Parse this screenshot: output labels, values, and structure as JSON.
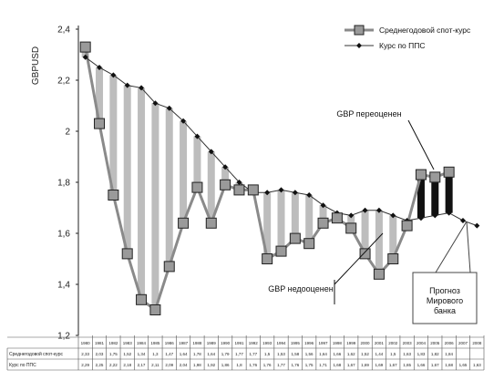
{
  "chart_data": {
    "type": "line",
    "ylabel": "GBPUSD",
    "ylim": [
      1.2,
      2.4
    ],
    "yticks": [
      "1,2",
      "1,4",
      "1,6",
      "1,8",
      "2",
      "2,2",
      "2,4"
    ],
    "yticks_values": [
      1.2,
      1.4,
      1.6,
      1.8,
      2.0,
      2.2,
      2.4
    ],
    "x": [
      "1980",
      "1981",
      "1982",
      "1983",
      "1984",
      "1985",
      "1986",
      "1987",
      "1988",
      "1989",
      "1990",
      "1991",
      "1992",
      "1993",
      "1994",
      "1995",
      "1996",
      "1997",
      "1998",
      "1999",
      "2000",
      "2001",
      "2002",
      "2003",
      "2004",
      "2005",
      "2006",
      "2007",
      "2008"
    ],
    "series": [
      {
        "name": "Среднегодовой спот-курс",
        "marker": "square",
        "color": "#808080",
        "values": [
          2.33,
          2.03,
          1.75,
          1.52,
          1.34,
          1.3,
          1.47,
          1.64,
          1.78,
          1.64,
          1.79,
          1.77,
          1.77,
          1.5,
          1.53,
          1.58,
          1.56,
          1.64,
          1.66,
          1.62,
          1.52,
          1.44,
          1.5,
          1.63,
          1.83,
          1.82,
          1.84,
          null,
          null
        ],
        "value_labels": [
          "2,33",
          "2,03",
          "1,75",
          "1,52",
          "1,34",
          "1,3",
          "1,47",
          "1,64",
          "1,78",
          "1,64",
          "1,79",
          "1,77",
          "1,77",
          "1,5",
          "1,53",
          "1,58",
          "1,56",
          "1,64",
          "1,66",
          "1,62",
          "1,52",
          "1,44",
          "1,5",
          "1,63",
          "1,83",
          "1,82",
          "1,84",
          "",
          ""
        ]
      },
      {
        "name": "Курс по ППС",
        "marker": "diamond",
        "color": "#333333",
        "values": [
          2.29,
          2.25,
          2.22,
          2.18,
          2.17,
          2.11,
          2.09,
          2.04,
          1.98,
          1.92,
          1.86,
          1.8,
          1.76,
          1.76,
          1.77,
          1.76,
          1.75,
          1.71,
          1.68,
          1.67,
          1.69,
          1.69,
          1.67,
          1.65,
          1.66,
          1.67,
          1.68,
          1.65,
          1.63
        ],
        "value_labels": [
          "2,29",
          "2,25",
          "2,22",
          "2,18",
          "2,17",
          "2,11",
          "2,09",
          "2,04",
          "1,98",
          "1,92",
          "1,86",
          "1,8",
          "1,76",
          "1,76",
          "1,77",
          "1,76",
          "1,75",
          "1,71",
          "1,68",
          "1,67",
          "1,69",
          "1,69",
          "1,67",
          "1,65",
          "1,66",
          "1,67",
          "1,68",
          "1,65",
          "1,63"
        ]
      }
    ],
    "overvalued_years": [
      "2004",
      "2005",
      "2006"
    ],
    "annotations": [
      "GBP переоценен",
      "GBP недооценен",
      "Прогноз Мирового банка"
    ],
    "legend_position": "top-right",
    "grid": false
  }
}
